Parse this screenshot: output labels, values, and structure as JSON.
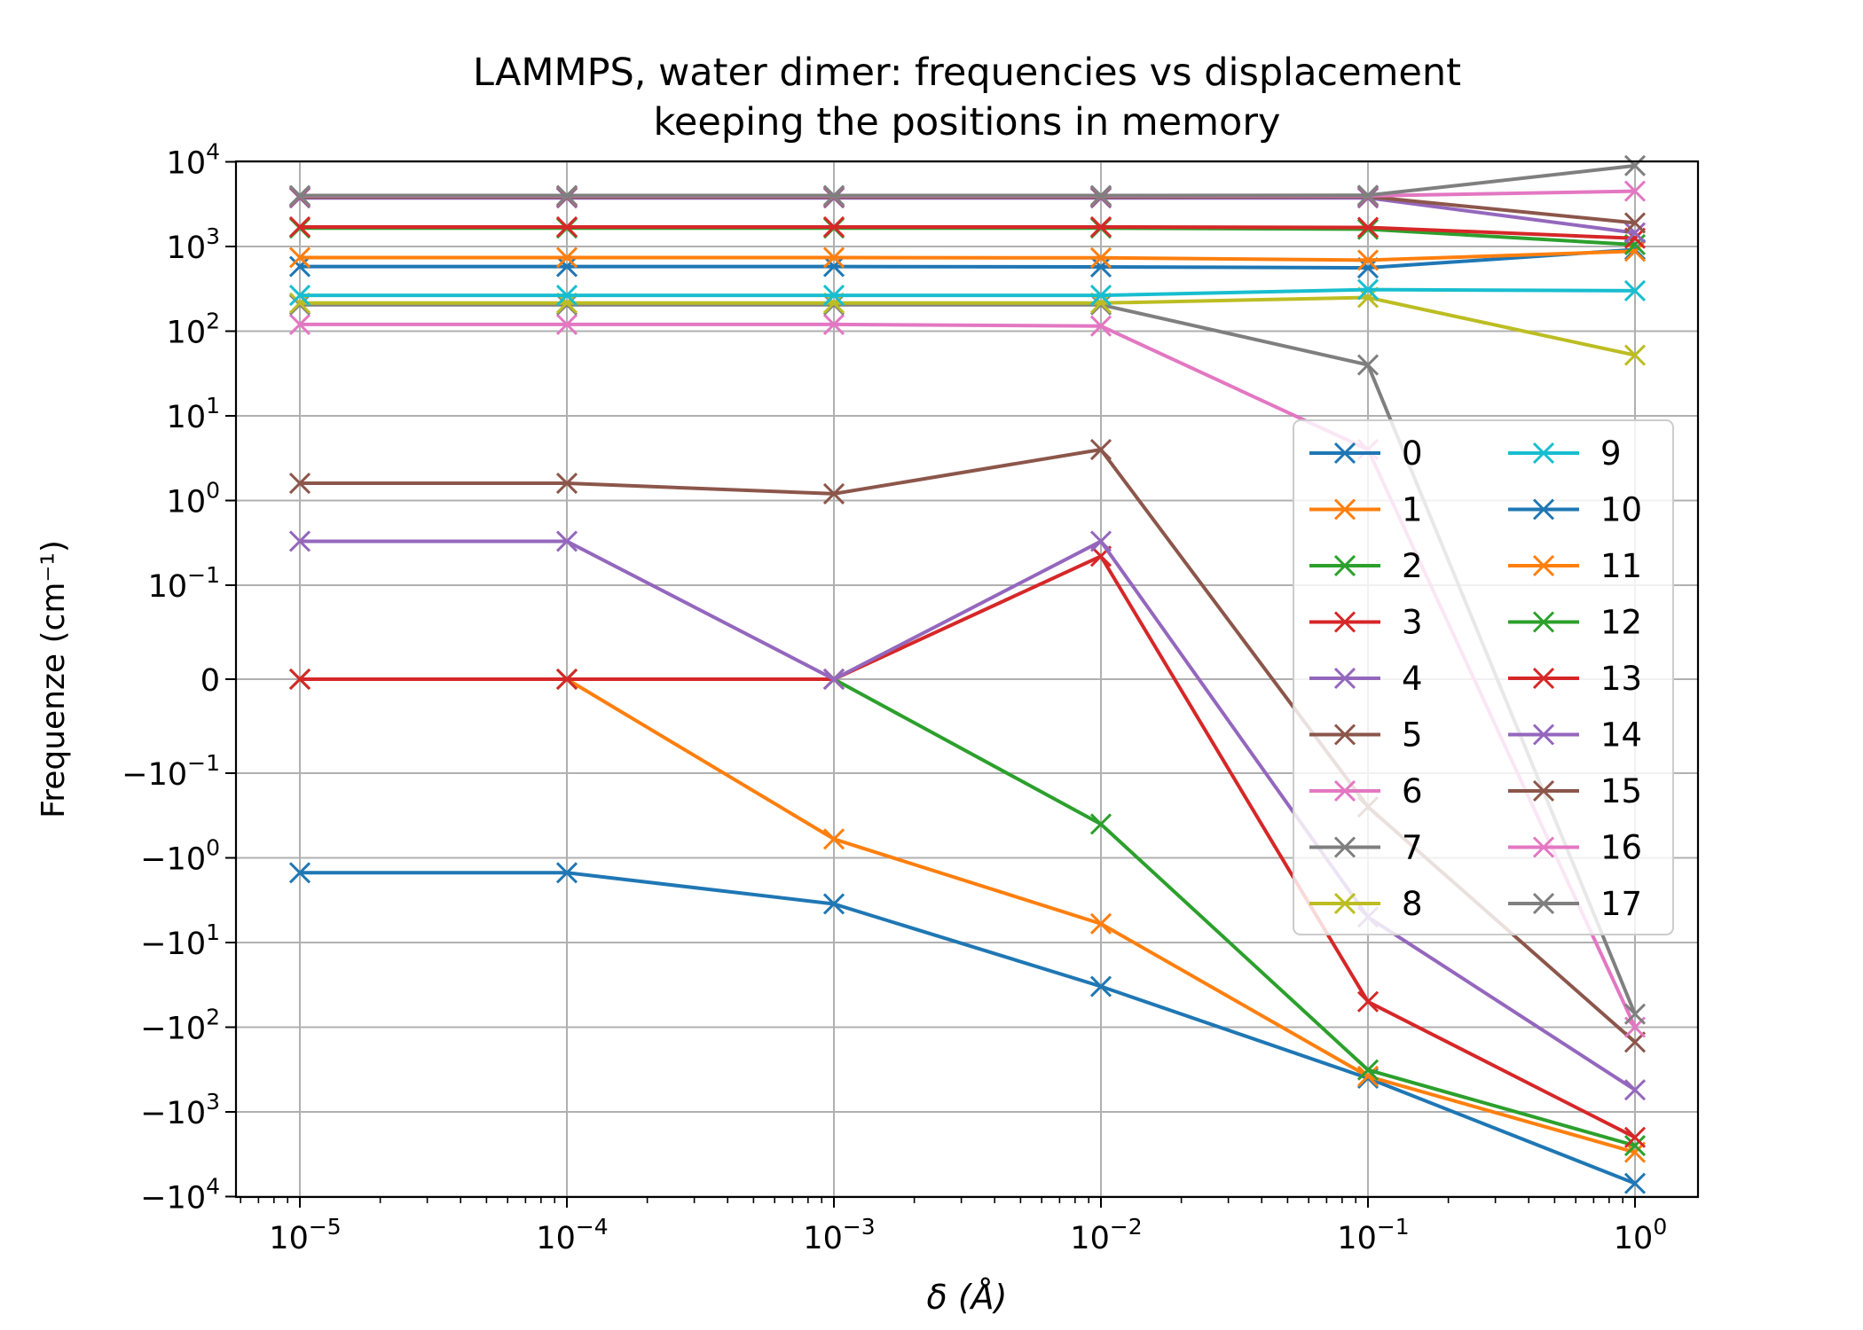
{
  "chart_data": {
    "type": "line",
    "title_line1": "LAMMPS, water dimer: frequencies vs displacement",
    "title_line2": "keeping the positions in memory",
    "xlabel": "δ (Å)",
    "ylabel": "Frequenze (cm⁻¹)",
    "x_scale": "log",
    "y_scale": "symlog",
    "x_ticks": [
      {
        "value": 1e-05,
        "base": "10",
        "exp": "−5"
      },
      {
        "value": 0.0001,
        "base": "10",
        "exp": "−4"
      },
      {
        "value": 0.001,
        "base": "10",
        "exp": "−3"
      },
      {
        "value": 0.01,
        "base": "10",
        "exp": "−2"
      },
      {
        "value": 0.1,
        "base": "10",
        "exp": "−1"
      },
      {
        "value": 1,
        "base": "10",
        "exp": "0"
      }
    ],
    "y_ticks": [
      {
        "value": 10000,
        "base": "10",
        "exp": "4"
      },
      {
        "value": 1000,
        "base": "10",
        "exp": "3"
      },
      {
        "value": 100,
        "base": "10",
        "exp": "2"
      },
      {
        "value": 10,
        "base": "10",
        "exp": "1"
      },
      {
        "value": 1,
        "base": "10",
        "exp": "0"
      },
      {
        "value": 0.1,
        "base": "10",
        "exp": "−1"
      },
      {
        "value": 0,
        "base": "0",
        "exp": ""
      },
      {
        "value": -0.1,
        "base": "−10",
        "exp": "−1"
      },
      {
        "value": -1,
        "base": "−10",
        "exp": "0"
      },
      {
        "value": -10,
        "base": "−10",
        "exp": "1"
      },
      {
        "value": -100,
        "base": "−10",
        "exp": "2"
      },
      {
        "value": -1000,
        "base": "−10",
        "exp": "3"
      },
      {
        "value": -10000,
        "base": "−10",
        "exp": "4"
      }
    ],
    "grid": true,
    "legend_position": "center-right",
    "x": [
      1e-05,
      0.0001,
      0.001,
      0.01,
      0.1,
      1
    ],
    "series": [
      {
        "name": "0",
        "color": "#1f77b4",
        "values": [
          -1.5,
          -1.5,
          -3.5,
          -33,
          -400,
          -7000
        ]
      },
      {
        "name": "1",
        "color": "#ff7f0e",
        "values": [
          0,
          0,
          -0.6,
          -6,
          -380,
          -3000
        ]
      },
      {
        "name": "2",
        "color": "#2ca02c",
        "values": [
          0,
          0,
          0,
          -0.4,
          -320,
          -2500
        ]
      },
      {
        "name": "3",
        "color": "#d62728",
        "values": [
          0,
          0,
          0,
          0.22,
          -50,
          -2000
        ]
      },
      {
        "name": "4",
        "color": "#9467bd",
        "values": [
          0.33,
          0.33,
          0,
          0.33,
          -5,
          -550
        ]
      },
      {
        "name": "5",
        "color": "#8c564b",
        "values": [
          1.6,
          1.6,
          1.2,
          4,
          -0.25,
          -150
        ]
      },
      {
        "name": "6",
        "color": "#e377c2",
        "values": [
          120,
          120,
          120,
          115,
          4,
          -100
        ]
      },
      {
        "name": "7",
        "color": "#7f7f7f",
        "values": [
          205,
          205,
          205,
          205,
          40,
          -70
        ]
      },
      {
        "name": "8",
        "color": "#bcbd22",
        "values": [
          215,
          215,
          215,
          215,
          250,
          52
        ]
      },
      {
        "name": "9",
        "color": "#17becf",
        "values": [
          265,
          265,
          265,
          265,
          310,
          300
        ]
      },
      {
        "name": "10",
        "color": "#1f77b4",
        "values": [
          580,
          580,
          580,
          575,
          560,
          920
        ]
      },
      {
        "name": "11",
        "color": "#ff7f0e",
        "values": [
          740,
          740,
          740,
          735,
          690,
          880
        ]
      },
      {
        "name": "12",
        "color": "#2ca02c",
        "values": [
          1650,
          1650,
          1650,
          1650,
          1600,
          1050
        ]
      },
      {
        "name": "13",
        "color": "#d62728",
        "values": [
          1700,
          1700,
          1700,
          1700,
          1680,
          1250
        ]
      },
      {
        "name": "14",
        "color": "#9467bd",
        "values": [
          3750,
          3750,
          3750,
          3750,
          3750,
          1450
        ]
      },
      {
        "name": "15",
        "color": "#8c564b",
        "values": [
          3850,
          3850,
          3850,
          3850,
          3880,
          1900
        ]
      },
      {
        "name": "16",
        "color": "#e377c2",
        "values": [
          3950,
          3950,
          3950,
          3950,
          3960,
          4500
        ]
      },
      {
        "name": "17",
        "color": "#7f7f7f",
        "values": [
          4000,
          4000,
          4000,
          4000,
          4020,
          9000
        ]
      }
    ]
  }
}
